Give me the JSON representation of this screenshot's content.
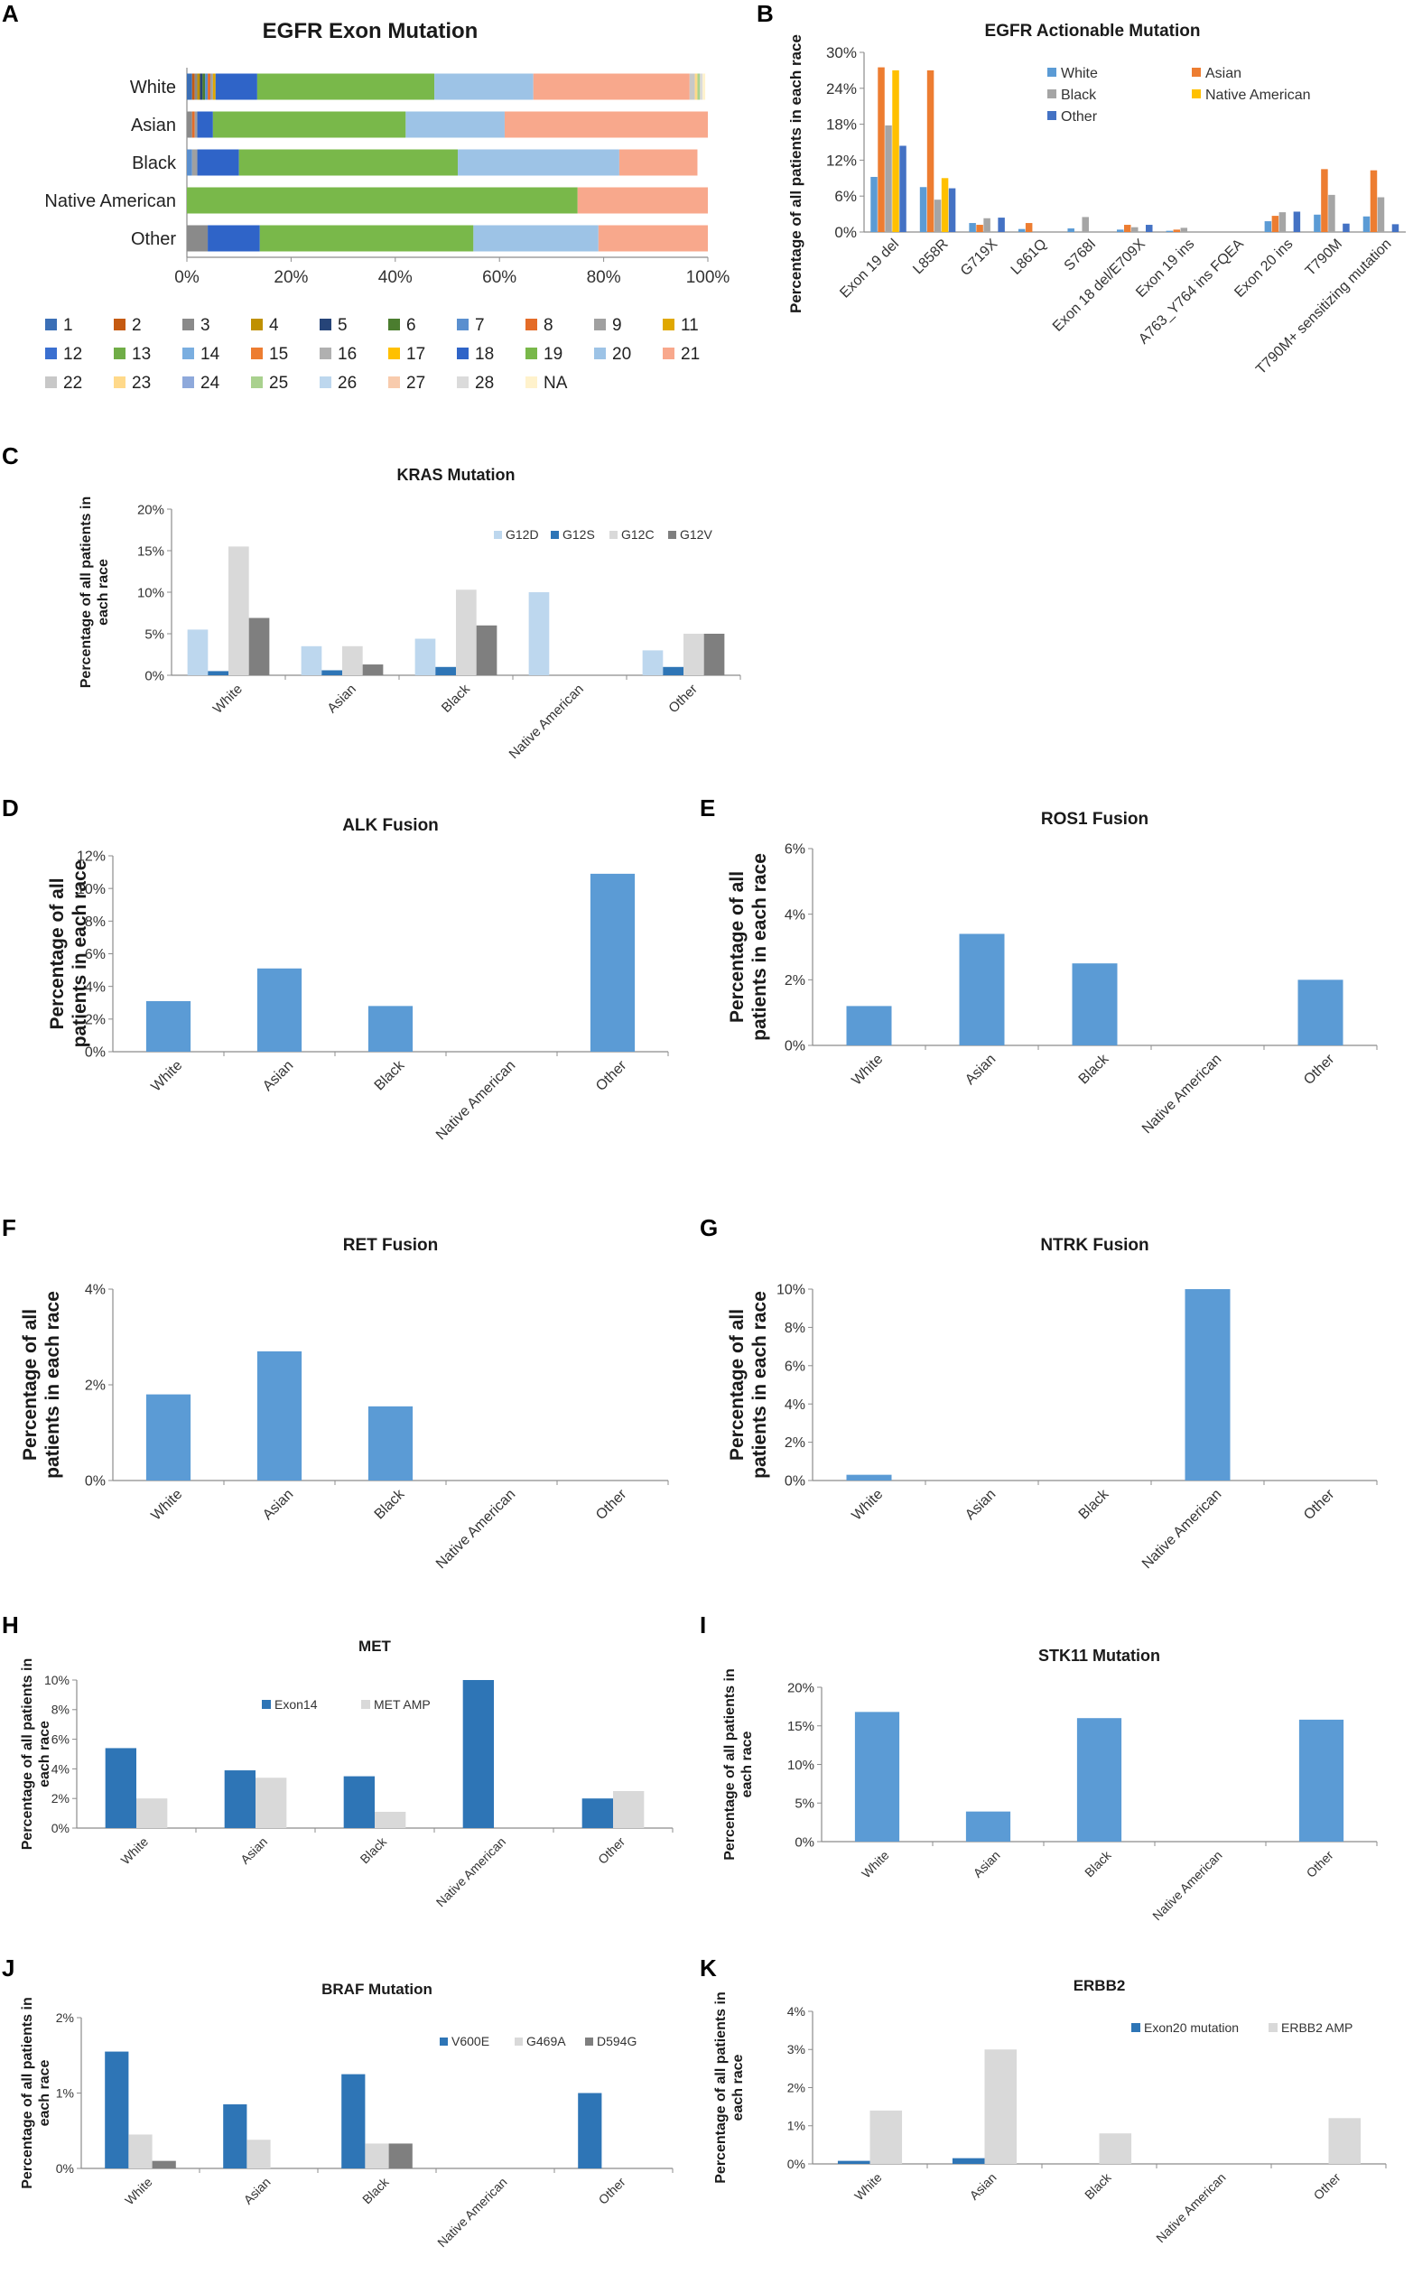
{
  "panel_labels": [
    "A",
    "B",
    "C",
    "D",
    "E",
    "F",
    "G",
    "H",
    "I",
    "J",
    "K"
  ],
  "chart_data": [
    {
      "id": "A",
      "type": "bar",
      "orientation": "horizontal-stacked-percent",
      "title": "EGFR Exon Mutation",
      "categories": [
        "White",
        "Asian",
        "Black",
        "Native American",
        "Other"
      ],
      "xticks": [
        "0%",
        "20%",
        "40%",
        "60%",
        "80%",
        "100%"
      ],
      "xlim": [
        0,
        100
      ],
      "legend": [
        "1",
        "2",
        "3",
        "4",
        "5",
        "6",
        "7",
        "8",
        "9",
        "11",
        "12",
        "13",
        "14",
        "15",
        "16",
        "17",
        "18",
        "19",
        "20",
        "21",
        "22",
        "23",
        "24",
        "25",
        "26",
        "27",
        "28",
        "NA"
      ],
      "legend_colors": [
        "#3b6fb6",
        "#c55a11",
        "#8a8a8a",
        "#bf9000",
        "#264478",
        "#4b7d2f",
        "#5a8fcf",
        "#e46c28",
        "#a0a0a0",
        "#e0a800",
        "#3a6fd0",
        "#70ad47",
        "#7aaee0",
        "#ed7d31",
        "#b0b0b0",
        "#ffc000",
        "#2f64c8",
        "#79b84a",
        "#9dc3e6",
        "#f8a88c",
        "#c8c8c8",
        "#ffd98a",
        "#8ea9db",
        "#a9d18e",
        "#bdd7ee",
        "#f8cbad",
        "#dbdbdb",
        "#fff2cc"
      ],
      "series": [
        {
          "name": "1",
          "values": [
            1,
            0,
            0,
            0,
            0
          ]
        },
        {
          "name": "2",
          "values": [
            0.5,
            0,
            0,
            0,
            0
          ]
        },
        {
          "name": "3",
          "values": [
            0.5,
            1,
            0,
            0,
            4
          ]
        },
        {
          "name": "4",
          "values": [
            0.5,
            0,
            0,
            0,
            0
          ]
        },
        {
          "name": "5",
          "values": [
            0.5,
            0,
            0,
            0,
            0
          ]
        },
        {
          "name": "6",
          "values": [
            0.5,
            0,
            0,
            0,
            0
          ]
        },
        {
          "name": "7",
          "values": [
            0.5,
            0,
            1,
            0,
            0
          ]
        },
        {
          "name": "8",
          "values": [
            0.5,
            0.5,
            0,
            0,
            0
          ]
        },
        {
          "name": "9",
          "values": [
            0.5,
            0.5,
            1,
            0,
            0
          ]
        },
        {
          "name": "11",
          "values": [
            0.5,
            0,
            0,
            0,
            0
          ]
        },
        {
          "name": "12",
          "values": [
            0,
            0,
            0,
            0,
            0
          ]
        },
        {
          "name": "13",
          "values": [
            0,
            0,
            0,
            0,
            0
          ]
        },
        {
          "name": "14",
          "values": [
            0,
            0,
            0,
            0,
            0
          ]
        },
        {
          "name": "15",
          "values": [
            0,
            0,
            0,
            0,
            0
          ]
        },
        {
          "name": "16",
          "values": [
            0,
            0,
            0,
            0,
            0
          ]
        },
        {
          "name": "17",
          "values": [
            0,
            0,
            0,
            0,
            0
          ]
        },
        {
          "name": "18",
          "values": [
            8,
            3,
            8,
            0,
            10
          ]
        },
        {
          "name": "19",
          "values": [
            34,
            37,
            42,
            75,
            41
          ]
        },
        {
          "name": "20",
          "values": [
            19,
            19,
            31,
            0,
            24
          ]
        },
        {
          "name": "21",
          "values": [
            30,
            39,
            15,
            25,
            21
          ]
        },
        {
          "name": "22",
          "values": [
            1,
            0,
            0,
            0,
            0
          ]
        },
        {
          "name": "23",
          "values": [
            0.5,
            0,
            0,
            0,
            0
          ]
        },
        {
          "name": "24",
          "values": [
            0,
            0,
            0,
            0,
            0
          ]
        },
        {
          "name": "25",
          "values": [
            0.5,
            0,
            0,
            0,
            0
          ]
        },
        {
          "name": "26",
          "values": [
            0,
            0,
            0,
            0,
            0
          ]
        },
        {
          "name": "27",
          "values": [
            0,
            0,
            0,
            0,
            0
          ]
        },
        {
          "name": "28",
          "values": [
            0.5,
            0,
            0,
            0,
            0
          ]
        },
        {
          "name": "NA",
          "values": [
            0.5,
            0,
            0,
            0,
            0
          ]
        }
      ]
    },
    {
      "id": "B",
      "type": "bar",
      "title": "EGFR Actionable Mutation",
      "ylabel": "Percentage of all patients in each race",
      "categories": [
        "Exon 19 del",
        "L858R",
        "G719X",
        "L861Q",
        "S768I",
        "Exon 18 del/E709X",
        "Exon 19 ins",
        "A763_Y764 ins FQEA",
        "Exon 20 ins",
        "T790M",
        "T790M+ sensitizing mutation"
      ],
      "yticks": [
        "0%",
        "6%",
        "12%",
        "18%",
        "24%",
        "30%"
      ],
      "ylim": [
        0,
        30
      ],
      "colors": [
        "#5b9bd5",
        "#ed7d31",
        "#a5a5a5",
        "#ffc000",
        "#4472c4"
      ],
      "series": [
        {
          "name": "White",
          "values": [
            9.2,
            7.5,
            1.5,
            0.5,
            0.6,
            0.4,
            0.2,
            0,
            1.8,
            2.9,
            2.6
          ]
        },
        {
          "name": "Asian",
          "values": [
            27.5,
            27,
            1.2,
            1.5,
            0,
            1.2,
            0.4,
            0,
            2.7,
            10.5,
            10.3
          ]
        },
        {
          "name": "Black",
          "values": [
            17.8,
            5.4,
            2.3,
            0,
            2.5,
            0.8,
            0.7,
            0,
            3.3,
            6.2,
            5.8
          ]
        },
        {
          "name": "Native American",
          "values": [
            27,
            9,
            0,
            0,
            0,
            0,
            0,
            0,
            0,
            0,
            0
          ]
        },
        {
          "name": "Other",
          "values": [
            14.4,
            7.3,
            2.4,
            0,
            0,
            1.2,
            0,
            0,
            3.4,
            1.4,
            1.3
          ]
        }
      ]
    },
    {
      "id": "C",
      "type": "bar",
      "title": "KRAS Mutation",
      "ylabel": "Percentage of all patients in each race",
      "categories": [
        "White",
        "Asian",
        "Black",
        "Native American",
        "Other"
      ],
      "yticks": [
        "0%",
        "5%",
        "10%",
        "15%",
        "20%"
      ],
      "ylim": [
        0,
        20
      ],
      "colors": [
        "#bdd7ee",
        "#2e75b6",
        "#d9d9d9",
        "#7f7f7f"
      ],
      "series": [
        {
          "name": "G12D",
          "values": [
            5.5,
            3.5,
            4.4,
            10,
            3
          ]
        },
        {
          "name": "G12S",
          "values": [
            0.5,
            0.6,
            1,
            0,
            1
          ]
        },
        {
          "name": "G12C",
          "values": [
            15.5,
            3.5,
            10.3,
            0,
            5
          ]
        },
        {
          "name": "G12V",
          "values": [
            6.9,
            1.3,
            6,
            0,
            5
          ]
        }
      ]
    },
    {
      "id": "D",
      "type": "bar",
      "title": "ALK Fusion",
      "ylabel": "Percentage of all patients in each race",
      "categories": [
        "White",
        "Asian",
        "Black",
        "Native American",
        "Other"
      ],
      "yticks": [
        "0%",
        "2%",
        "4%",
        "6%",
        "8%",
        "10%",
        "12%"
      ],
      "ylim": [
        0,
        12
      ],
      "colors": [
        "#5b9bd5"
      ],
      "series": [
        {
          "name": "ALK",
          "values": [
            3.1,
            5.1,
            2.8,
            0,
            10.9
          ]
        }
      ]
    },
    {
      "id": "E",
      "type": "bar",
      "title": "ROS1 Fusion",
      "ylabel": "Percentage of all patients in each race",
      "categories": [
        "White",
        "Asian",
        "Black",
        "Native American",
        "Other"
      ],
      "yticks": [
        "0%",
        "2%",
        "4%",
        "6%"
      ],
      "ylim": [
        0,
        6
      ],
      "colors": [
        "#5b9bd5"
      ],
      "series": [
        {
          "name": "ROS1",
          "values": [
            1.2,
            3.4,
            2.5,
            0,
            2
          ]
        }
      ]
    },
    {
      "id": "F",
      "type": "bar",
      "title": "RET Fusion",
      "ylabel": "Percentage of all patients in each race",
      "categories": [
        "White",
        "Asian",
        "Black",
        "Native American",
        "Other"
      ],
      "yticks": [
        "0%",
        "2%",
        "4%"
      ],
      "ylim": [
        0,
        4
      ],
      "colors": [
        "#5b9bd5"
      ],
      "series": [
        {
          "name": "RET",
          "values": [
            1.8,
            2.7,
            1.55,
            0,
            0
          ]
        }
      ]
    },
    {
      "id": "G",
      "type": "bar",
      "title": "NTRK Fusion",
      "ylabel": "Percentage of all patients in each race",
      "categories": [
        "White",
        "Asian",
        "Black",
        "Native American",
        "Other"
      ],
      "yticks": [
        "0%",
        "2%",
        "4%",
        "6%",
        "8%",
        "10%"
      ],
      "ylim": [
        0,
        10
      ],
      "colors": [
        "#5b9bd5"
      ],
      "series": [
        {
          "name": "NTRK",
          "values": [
            0.3,
            0,
            0,
            10,
            0
          ]
        }
      ]
    },
    {
      "id": "H",
      "type": "bar",
      "title": "MET",
      "ylabel": "Percentage of all patients in each race",
      "categories": [
        "White",
        "Asian",
        "Black",
        "Native American",
        "Other"
      ],
      "yticks": [
        "0%",
        "2%",
        "4%",
        "6%",
        "8%",
        "10%"
      ],
      "ylim": [
        0,
        10
      ],
      "colors": [
        "#2e75b6",
        "#d9d9d9"
      ],
      "series": [
        {
          "name": "Exon14",
          "values": [
            5.4,
            3.9,
            3.5,
            10,
            2
          ]
        },
        {
          "name": "MET AMP",
          "values": [
            2,
            3.4,
            1.1,
            0,
            2.5
          ]
        }
      ]
    },
    {
      "id": "I",
      "type": "bar",
      "title": "STK11 Mutation",
      "ylabel": "Percentage of all patients in each race",
      "categories": [
        "White",
        "Asian",
        "Black",
        "Native American",
        "Other"
      ],
      "yticks": [
        "0%",
        "5%",
        "10%",
        "15%",
        "20%"
      ],
      "ylim": [
        0,
        20
      ],
      "colors": [
        "#5b9bd5"
      ],
      "series": [
        {
          "name": "STK11",
          "values": [
            16.8,
            3.9,
            16,
            0,
            15.8
          ]
        }
      ]
    },
    {
      "id": "J",
      "type": "bar",
      "title": "BRAF Mutation",
      "ylabel": "Percentage of all patients in each race",
      "categories": [
        "White",
        "Asian",
        "Black",
        "Native American",
        "Other"
      ],
      "yticks": [
        "0%",
        "1%",
        "2%"
      ],
      "ylim": [
        0,
        2
      ],
      "colors": [
        "#2e75b6",
        "#d9d9d9",
        "#7f7f7f"
      ],
      "series": [
        {
          "name": "V600E",
          "values": [
            1.55,
            0.85,
            1.25,
            0,
            1
          ]
        },
        {
          "name": "G469A",
          "values": [
            0.45,
            0.38,
            0.33,
            0,
            0
          ]
        },
        {
          "name": "D594G",
          "values": [
            0.1,
            0,
            0.33,
            0,
            0
          ]
        }
      ]
    },
    {
      "id": "K",
      "type": "bar",
      "title": "ERBB2",
      "ylabel": "Percentage of all patients in each race",
      "categories": [
        "White",
        "Asian",
        "Black",
        "Native American",
        "Other"
      ],
      "yticks": [
        "0%",
        "1%",
        "2%",
        "3%",
        "4%"
      ],
      "ylim": [
        0,
        4
      ],
      "colors": [
        "#2e75b6",
        "#d9d9d9"
      ],
      "series": [
        {
          "name": "Exon20 mutation",
          "values": [
            0.08,
            0.15,
            0,
            0,
            0
          ]
        },
        {
          "name": "ERBB2 AMP",
          "values": [
            1.4,
            3,
            0.8,
            0,
            1.2
          ]
        }
      ]
    }
  ]
}
